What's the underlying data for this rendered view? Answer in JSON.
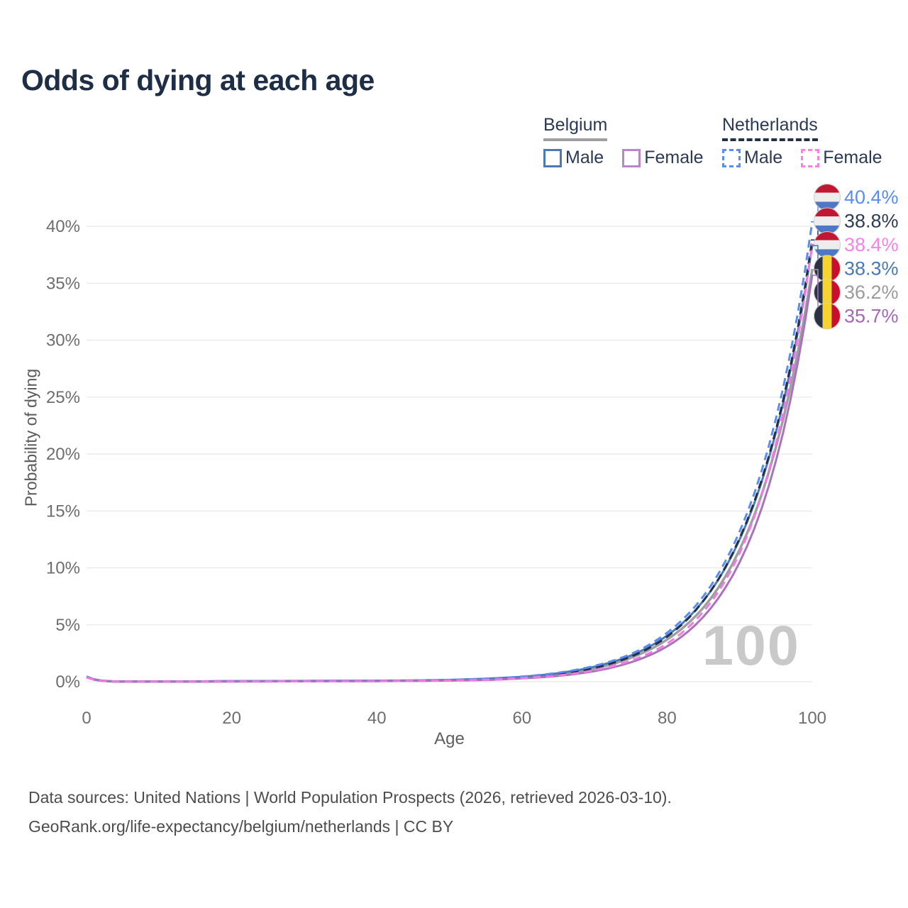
{
  "title": "Odds of dying at each age",
  "watermark_age": "100",
  "footer": {
    "line1": "Data sources: United Nations | World Population Prospects (2026, retrieved 2026-03-10).",
    "line2": "GeoRank.org/life-expectancy/belgium/netherlands | CC BY"
  },
  "legend": {
    "groups": [
      {
        "label": "Belgium",
        "underline_style": "solid",
        "underline_color": "#9e9ea3",
        "items": [
          {
            "label": "Male",
            "color": "#4a79b6",
            "dash": false
          },
          {
            "label": "Female",
            "color": "#bb85c9",
            "dash": false
          }
        ]
      },
      {
        "label": "Netherlands",
        "underline_style": "dashed",
        "underline_color": "#22304a",
        "items": [
          {
            "label": "Male",
            "color": "#5a8cf2",
            "dash": true
          },
          {
            "label": "Female",
            "color": "#f883e8",
            "dash": true
          }
        ]
      }
    ]
  },
  "chart_data": {
    "type": "line",
    "title": "Odds of dying at each age",
    "xlabel": "Age",
    "ylabel": "Probability of dying",
    "xlim": [
      0,
      100
    ],
    "ylim": [
      0,
      43
    ],
    "grid": "horizontal",
    "legend_position": "top-right",
    "x_ticks": [
      0,
      20,
      40,
      60,
      80,
      100
    ],
    "y_ticks": [
      "0%",
      "5%",
      "10%",
      "15%",
      "20%",
      "25%",
      "30%",
      "35%",
      "40%"
    ],
    "y_tick_values": [
      0,
      5,
      10,
      15,
      20,
      25,
      30,
      35,
      40
    ],
    "ages": [
      0,
      5,
      10,
      15,
      20,
      25,
      30,
      35,
      40,
      45,
      50,
      55,
      60,
      65,
      70,
      75,
      80,
      85,
      90,
      95,
      100
    ],
    "flag_colors": {
      "nl": [
        "#c01832",
        "#ededed",
        "#4f78c4"
      ],
      "be": [
        "#2b3245",
        "#f5d330",
        "#c8102e"
      ]
    },
    "draw_order": [
      "belgium_both",
      "belgium_male",
      "belgium_female",
      "netherlands_both",
      "netherlands_male",
      "netherlands_female"
    ],
    "series": [
      {
        "id": "netherlands_male",
        "name": "Netherlands Male",
        "country": "Netherlands",
        "sex": "Male",
        "color": "#5a8cf2",
        "label_color": "#5a8cf2",
        "dash": "11 7",
        "width": 3,
        "flag": "nl",
        "end_value": 40.4,
        "end_label": "40.4%",
        "values": [
          0.42,
          0.01,
          0.01,
          0.02,
          0.05,
          0.06,
          0.06,
          0.07,
          0.08,
          0.1,
          0.15,
          0.26,
          0.45,
          0.79,
          1.39,
          2.43,
          4.3,
          7.5,
          13.2,
          23.1,
          40.4
        ]
      },
      {
        "id": "netherlands_both",
        "name": "Netherlands Both sexes",
        "country": "Netherlands",
        "sex": "Both",
        "color": "#22304a",
        "label_color": "#2e3d54",
        "dash": "11 7",
        "width": 3,
        "flag": "nl",
        "end_value": 38.8,
        "end_label": "38.8%",
        "values": [
          0.4,
          0.01,
          0.01,
          0.02,
          0.03,
          0.04,
          0.04,
          0.05,
          0.06,
          0.08,
          0.12,
          0.2,
          0.38,
          0.68,
          1.22,
          2.2,
          3.95,
          7.1,
          12.6,
          22.1,
          38.8
        ]
      },
      {
        "id": "netherlands_female",
        "name": "Netherlands Female",
        "country": "Netherlands",
        "sex": "Female",
        "color": "#f478e2",
        "label_color": "#f883e8",
        "dash": "11 7",
        "width": 3,
        "flag": "nl",
        "end_value": 38.4,
        "end_label": "38.4%",
        "values": [
          0.37,
          0.01,
          0.01,
          0.02,
          0.02,
          0.02,
          0.03,
          0.03,
          0.05,
          0.07,
          0.1,
          0.16,
          0.31,
          0.55,
          1.0,
          1.85,
          3.35,
          6.15,
          11.3,
          20.9,
          38.4
        ]
      },
      {
        "id": "belgium_male",
        "name": "Belgium Male",
        "country": "Belgium",
        "sex": "Male",
        "color": "#4a79b6",
        "label_color": "#4a79b6",
        "dash": null,
        "width": 3,
        "flag": "be",
        "end_value": 38.3,
        "end_label": "38.3%",
        "values": [
          0.45,
          0.01,
          0.01,
          0.03,
          0.05,
          0.06,
          0.07,
          0.08,
          0.09,
          0.11,
          0.16,
          0.27,
          0.43,
          0.75,
          1.32,
          2.3,
          4.05,
          7.1,
          12.5,
          21.9,
          38.3
        ]
      },
      {
        "id": "belgium_both",
        "name": "Belgium Both sexes",
        "country": "Belgium",
        "sex": "Both",
        "color": "#9e9ea3",
        "label_color": "#9b9b9b",
        "dash": null,
        "width": 3.5,
        "flag": "be",
        "end_value": 36.2,
        "end_label": "36.2%",
        "values": [
          0.42,
          0.01,
          0.01,
          0.02,
          0.04,
          0.04,
          0.05,
          0.06,
          0.07,
          0.09,
          0.13,
          0.21,
          0.36,
          0.64,
          1.15,
          2.1,
          3.7,
          6.5,
          11.6,
          20.6,
          36.2
        ]
      },
      {
        "id": "belgium_female",
        "name": "Belgium Female",
        "country": "Belgium",
        "sex": "Female",
        "color": "#a973bb",
        "label_color": "#a569b4",
        "dash": null,
        "width": 3,
        "flag": "be",
        "end_value": 35.7,
        "end_label": "35.7%",
        "values": [
          0.4,
          0.01,
          0.01,
          0.02,
          0.02,
          0.03,
          0.03,
          0.04,
          0.05,
          0.07,
          0.1,
          0.15,
          0.29,
          0.51,
          0.93,
          1.7,
          3.1,
          5.7,
          10.5,
          19.4,
          35.7
        ]
      }
    ]
  }
}
